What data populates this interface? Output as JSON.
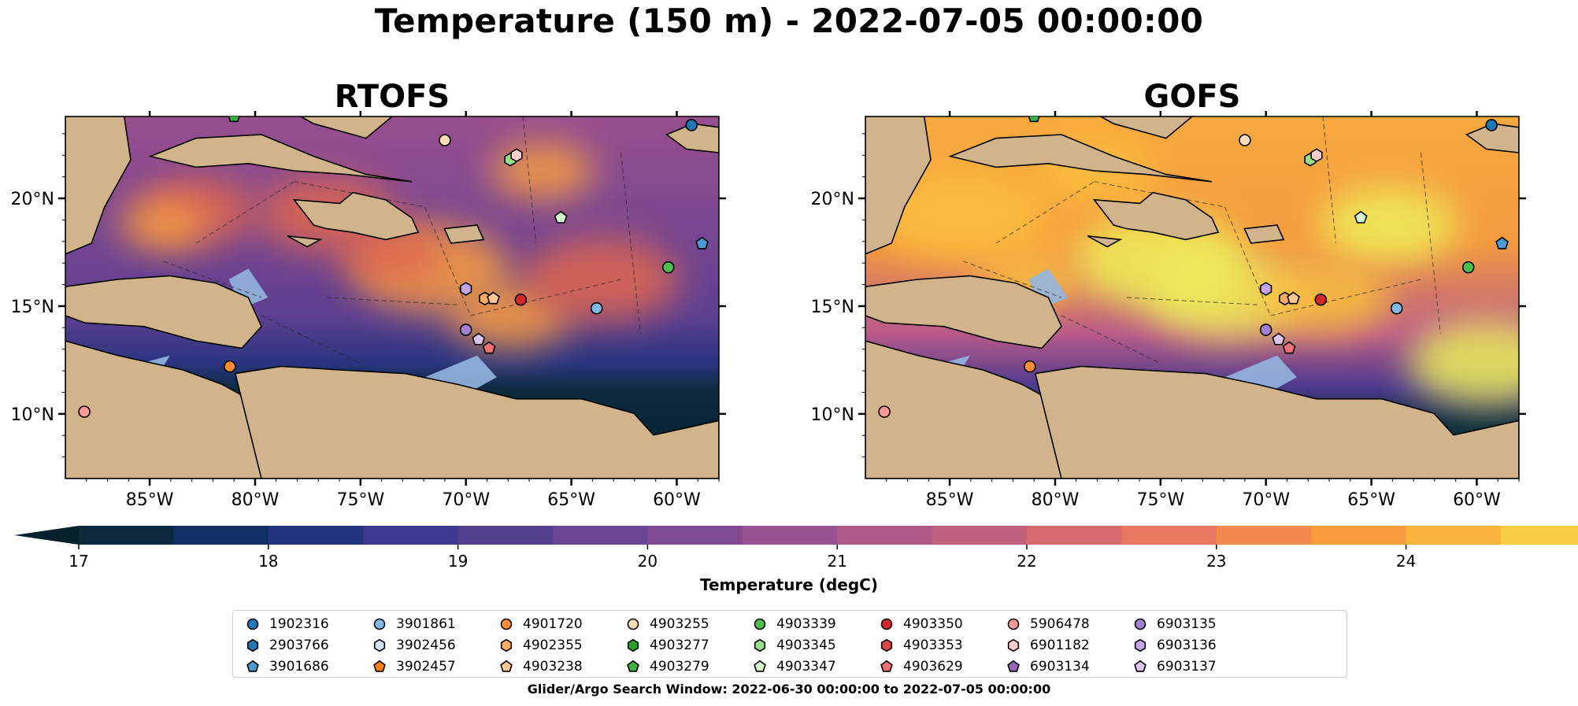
{
  "title": "Temperature (150 m) - 2022-07-05 00:00:00",
  "panels": [
    {
      "title": "RTOFS",
      "style": "cool",
      "spots": [
        [
          0.56,
          0.42,
          0.9
        ],
        [
          0.4,
          0.27,
          0.8
        ],
        [
          0.73,
          0.15,
          0.6
        ],
        [
          0.2,
          0.26,
          0.7
        ],
        [
          0.68,
          0.55,
          0.7
        ],
        [
          0.82,
          0.45,
          0.9
        ],
        [
          0.15,
          0.3,
          0.5
        ],
        [
          0.5,
          0.38,
          0.6
        ]
      ]
    },
    {
      "title": "GOFS",
      "style": "warm",
      "spots": [
        [
          0.45,
          0.4,
          1.0
        ],
        [
          0.15,
          0.27,
          1.0
        ],
        [
          0.55,
          0.5,
          0.9
        ],
        [
          0.35,
          0.15,
          0.7
        ],
        [
          0.8,
          0.3,
          0.8
        ],
        [
          0.25,
          0.45,
          0.6
        ],
        [
          0.95,
          0.68,
          0.9
        ],
        [
          0.7,
          0.5,
          0.8
        ]
      ]
    }
  ],
  "axes": {
    "lon_ticks": [
      "85°W",
      "80°W",
      "75°W",
      "70°W",
      "65°W",
      "60°W"
    ],
    "lon_values": [
      -85,
      -80,
      -75,
      -70,
      -65,
      -60
    ],
    "lat_ticks": [
      "20°N",
      "15°N",
      "10°N"
    ],
    "lat_values": [
      20,
      15,
      10
    ],
    "lon_range": [
      -89,
      -58
    ],
    "lat_range": [
      7,
      23.8
    ]
  },
  "colorbar": {
    "label": "Temperature (degC)",
    "ticks": [
      "17",
      "18",
      "19",
      "20",
      "21",
      "22",
      "23",
      "24"
    ],
    "tick_values": [
      17,
      18,
      19,
      20,
      21,
      22,
      23,
      24
    ],
    "range": [
      17,
      24.5
    ],
    "step": 0.5,
    "colors": [
      "#0b2a3d",
      "#102f63",
      "#23347f",
      "#3b3a8e",
      "#52408f",
      "#694593",
      "#804b93",
      "#985290",
      "#ad5a89",
      "#c1617d",
      "#d66a6f",
      "#e87960",
      "#f48a4e",
      "#f99d3f",
      "#fbb33c",
      "#f7cc42",
      "#eae34f"
    ],
    "under_color": "#05212e",
    "over_color": "#e6f252"
  },
  "map_colors": {
    "land": "#d2b48c",
    "ocean": "#95b6e0",
    "boundary": "#000000"
  },
  "legend": {
    "items": [
      {
        "id": "1902316",
        "color": "#1f77b4",
        "marker": "circle"
      },
      {
        "id": "2903766",
        "color": "#1f77b4",
        "marker": "hexagon"
      },
      {
        "id": "3901686",
        "color": "#4a9bd6",
        "marker": "pentagon"
      },
      {
        "id": "3901861",
        "color": "#7fb9e8",
        "marker": "circle"
      },
      {
        "id": "3902456",
        "color": "#cfe3f5",
        "marker": "hexagon"
      },
      {
        "id": "3902457",
        "color": "#ff7f0e",
        "marker": "pentagon"
      },
      {
        "id": "4901720",
        "color": "#ff8c32",
        "marker": "circle"
      },
      {
        "id": "4902355",
        "color": "#ffad66",
        "marker": "hexagon"
      },
      {
        "id": "4903238",
        "color": "#ffc794",
        "marker": "pentagon"
      },
      {
        "id": "4903255",
        "color": "#ffdcb8",
        "marker": "circle"
      },
      {
        "id": "4903277",
        "color": "#2ca02c",
        "marker": "hexagon"
      },
      {
        "id": "4903279",
        "color": "#3cb043",
        "marker": "pentagon"
      },
      {
        "id": "4903339",
        "color": "#4dbd4d",
        "marker": "circle"
      },
      {
        "id": "4903345",
        "color": "#98df8a",
        "marker": "hexagon"
      },
      {
        "id": "4903347",
        "color": "#d7f5cc",
        "marker": "pentagon"
      },
      {
        "id": "4903350",
        "color": "#d62728",
        "marker": "circle"
      },
      {
        "id": "4903353",
        "color": "#e0454a",
        "marker": "hexagon"
      },
      {
        "id": "4903629",
        "color": "#f07276",
        "marker": "pentagon"
      },
      {
        "id": "5906478",
        "color": "#ff9896",
        "marker": "circle"
      },
      {
        "id": "6901182",
        "color": "#ffcccb",
        "marker": "hexagon"
      },
      {
        "id": "6903134",
        "color": "#9467bd",
        "marker": "pentagon"
      },
      {
        "id": "6903135",
        "color": "#a57fd0",
        "marker": "circle"
      },
      {
        "id": "6903136",
        "color": "#c5a5e8",
        "marker": "hexagon"
      },
      {
        "id": "6903137",
        "color": "#dcc5f2",
        "marker": "pentagon"
      }
    ]
  },
  "markers": [
    {
      "id": "1902316",
      "lon": -59.3,
      "lat": 23.4
    },
    {
      "id": "3901686",
      "lon": -58.8,
      "lat": 17.9
    },
    {
      "id": "4903339",
      "lon": -60.4,
      "lat": 16.8
    },
    {
      "id": "3901861",
      "lon": -63.8,
      "lat": 14.9
    },
    {
      "id": "4903350",
      "lon": -67.4,
      "lat": 15.3
    },
    {
      "id": "4902355",
      "lon": -69.1,
      "lat": 15.35
    },
    {
      "id": "4903238",
      "lon": -68.7,
      "lat": 15.35
    },
    {
      "id": "6903136",
      "lon": -70.0,
      "lat": 15.8
    },
    {
      "id": "6903135",
      "lon": -70.0,
      "lat": 13.9
    },
    {
      "id": "6903137",
      "lon": -69.4,
      "lat": 13.45
    },
    {
      "id": "4903629",
      "lon": -68.9,
      "lat": 13.05
    },
    {
      "id": "4903255",
      "lon": -71.0,
      "lat": 22.7
    },
    {
      "id": "4903345",
      "lon": -67.9,
      "lat": 21.8
    },
    {
      "id": "6901182",
      "lon": -67.6,
      "lat": 22.0
    },
    {
      "id": "4903347",
      "lon": -65.5,
      "lat": 19.1
    },
    {
      "id": "4901720",
      "lon": -81.2,
      "lat": 12.2
    },
    {
      "id": "5906478",
      "lon": -88.1,
      "lat": 10.1
    },
    {
      "id": "4903279",
      "lon": -81.0,
      "lat": 23.8
    }
  ],
  "search_window": "Glider/Argo Search Window: 2022-06-30 00:00:00 to 2022-07-05 00:00:00"
}
